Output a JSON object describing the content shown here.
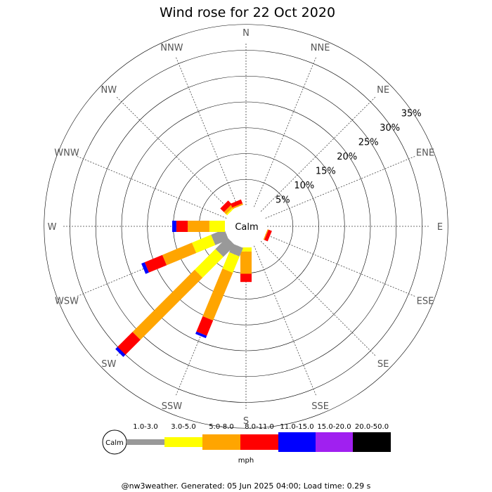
{
  "chart_data": {
    "type": "wind-rose",
    "title": "Wind rose for 22 Oct 2020",
    "directions": [
      "N",
      "NNE",
      "NE",
      "ENE",
      "E",
      "ESE",
      "SE",
      "SSE",
      "S",
      "SSW",
      "SW",
      "WSW",
      "W",
      "WNW",
      "NW",
      "NNW"
    ],
    "rings_pct": [
      5,
      10,
      15,
      20,
      25,
      30,
      35
    ],
    "ring_labels": [
      "5%",
      "10%",
      "15%",
      "20%",
      "25%",
      "30%",
      "35%"
    ],
    "calm_label": "Calm",
    "unit": "mph",
    "speed_bins": [
      {
        "label": "1.0-3.0",
        "color": "#999999"
      },
      {
        "label": "3.0-5.0",
        "color": "#ffff00"
      },
      {
        "label": "5.0-8.0",
        "color": "#ffa500"
      },
      {
        "label": "8.0-11.0",
        "color": "#ff0000"
      },
      {
        "label": "11.0-15.0",
        "color": "#0000ff"
      },
      {
        "label": "15.0-20.0",
        "color": "#a020f0"
      },
      {
        "label": "20.0-50.0",
        "color": "#000000"
      }
    ],
    "series": [
      {
        "direction": "NW",
        "values": [
          0.0,
          0.3,
          0.6,
          1.0,
          0.0,
          0.0,
          0.0
        ]
      },
      {
        "direction": "NNW",
        "values": [
          0.0,
          0.0,
          0.3,
          0.8,
          0.0,
          0.0,
          0.0
        ]
      },
      {
        "direction": "ESE",
        "values": [
          0.0,
          0.0,
          0.2,
          0.7,
          0.0,
          0.0,
          0.0
        ]
      },
      {
        "direction": "S",
        "values": [
          0.0,
          0.8,
          4.3,
          1.6,
          0.0,
          0.0,
          0.0
        ]
      },
      {
        "direction": "SSW",
        "values": [
          1.8,
          3.4,
          10.0,
          3.2,
          0.5,
          0.0,
          0.0
        ]
      },
      {
        "direction": "SW",
        "values": [
          3.2,
          5.7,
          17.0,
          4.1,
          0.6,
          0.0,
          0.0
        ]
      },
      {
        "direction": "WSW",
        "values": [
          2.8,
          4.0,
          6.2,
          3.7,
          0.7,
          0.0,
          0.0
        ]
      },
      {
        "direction": "W",
        "values": [
          0.0,
          3.0,
          4.2,
          2.2,
          0.8,
          0.0,
          0.0
        ]
      }
    ]
  },
  "footer": "@nw3weather. Generated: 05 Jun 2025 04:00; Load time: 0.29 s"
}
